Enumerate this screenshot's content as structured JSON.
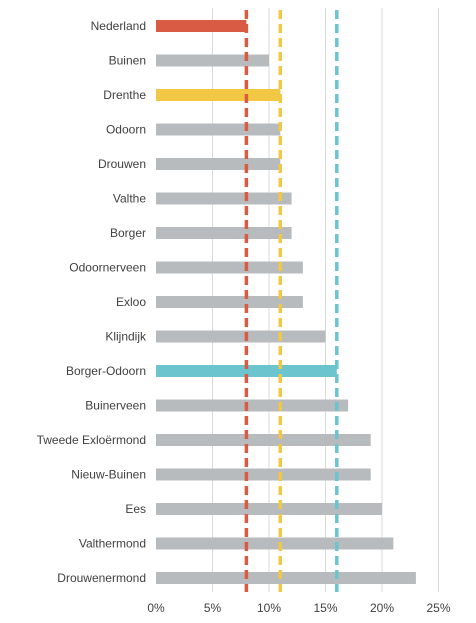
{
  "chart_data": {
    "type": "bar",
    "orientation": "horizontal",
    "title": "",
    "xlabel": "",
    "ylabel": "",
    "xlim": [
      0,
      25
    ],
    "ticks": [
      0,
      5,
      10,
      15,
      20,
      25
    ],
    "tick_labels": [
      "0%",
      "5%",
      "10%",
      "15%",
      "20%",
      "25%"
    ],
    "grid": true,
    "categories": [
      "Nederland",
      "Buinen",
      "Drenthe",
      "Odoorn",
      "Drouwen",
      "Valthe",
      "Borger",
      "Odoornerveen",
      "Exloo",
      "Klijndijk",
      "Borger-Odoorn",
      "Buinerveen",
      "Tweede Exloërmond",
      "Nieuw-Buinen",
      "Ees",
      "Valthermond",
      "Drouwenermond"
    ],
    "values": [
      8,
      10,
      11,
      11,
      11,
      12,
      12,
      13,
      13,
      15,
      16,
      17,
      19,
      19,
      20,
      21,
      23
    ],
    "reference_lines": [
      {
        "category": "Nederland",
        "value": 8,
        "color": "#d95b43"
      },
      {
        "category": "Drenthe",
        "value": 11,
        "color": "#f2c744"
      },
      {
        "category": "Borger-Odoorn",
        "value": 16,
        "color": "#6bc4ce"
      }
    ],
    "colors": {
      "default_bar": "#b7bbbe",
      "Nederland": "#d95b43",
      "Drenthe": "#f2c744",
      "Borger-Odoorn": "#6bc4ce",
      "grid": "#d9d9d9"
    }
  }
}
